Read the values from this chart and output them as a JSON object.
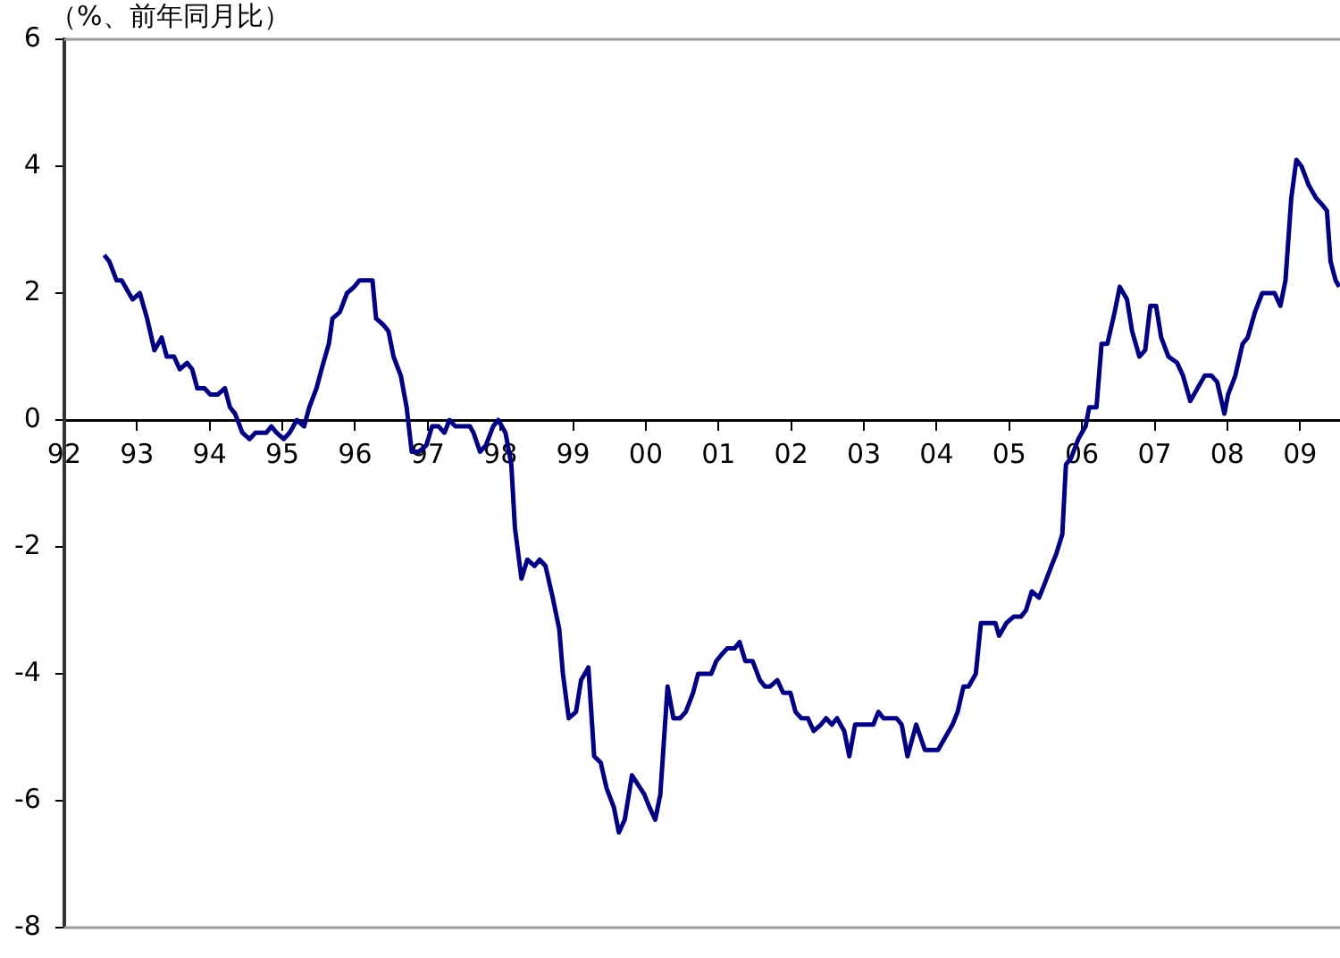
{
  "chart_data": {
    "type": "line",
    "title": "（%、前年同月比）",
    "color": "#000080",
    "grid": false,
    "legend": false,
    "marker": "none",
    "line_style": "solid",
    "xlim": [
      1992,
      2009.55
    ],
    "xticks": [
      {
        "value": 1992,
        "label": "92"
      },
      {
        "value": 1993,
        "label": "93"
      },
      {
        "value": 1994,
        "label": "94"
      },
      {
        "value": 1995,
        "label": "95"
      },
      {
        "value": 1996,
        "label": "96"
      },
      {
        "value": 1997,
        "label": "97"
      },
      {
        "value": 1998,
        "label": "98"
      },
      {
        "value": 1999,
        "label": "99"
      },
      {
        "value": 2000,
        "label": "00"
      },
      {
        "value": 2001,
        "label": "01"
      },
      {
        "value": 2002,
        "label": "02"
      },
      {
        "value": 2003,
        "label": "03"
      },
      {
        "value": 2004,
        "label": "04"
      },
      {
        "value": 2005,
        "label": "05"
      },
      {
        "value": 2006,
        "label": "06"
      },
      {
        "value": 2007,
        "label": "07"
      },
      {
        "value": 2008,
        "label": "08"
      },
      {
        "value": 2009,
        "label": "09"
      }
    ],
    "ylim": [
      -8,
      6
    ],
    "yticks": [
      -8,
      -6,
      -4,
      -2,
      0,
      2,
      4,
      6
    ],
    "x": [
      1992.55,
      1992.62,
      1992.72,
      1992.79,
      1992.89,
      1992.94,
      1993.04,
      1993.14,
      1993.24,
      1993.34,
      1993.41,
      1993.51,
      1993.59,
      1993.69,
      1993.76,
      1993.83,
      1993.93,
      1994.01,
      1994.11,
      1994.21,
      1994.28,
      1994.35,
      1994.45,
      1994.55,
      1994.63,
      1994.78,
      1994.85,
      1994.92,
      1995.02,
      1995.1,
      1995.2,
      1995.3,
      1995.37,
      1995.47,
      1995.54,
      1995.64,
      1995.69,
      1995.79,
      1995.89,
      1995.99,
      1996.06,
      1996.24,
      1996.29,
      1996.39,
      1996.46,
      1996.53,
      1996.63,
      1996.71,
      1996.78,
      1996.88,
      1996.98,
      1997.06,
      1997.15,
      1997.23,
      1997.3,
      1997.38,
      1997.58,
      1997.63,
      1997.72,
      1997.8,
      1997.9,
      1997.97,
      1998.07,
      1998.15,
      1998.2,
      1998.29,
      1998.37,
      1998.47,
      1998.54,
      1998.62,
      1998.72,
      1998.81,
      1998.86,
      1998.94,
      1999.04,
      1999.11,
      1999.21,
      1999.29,
      1999.38,
      1999.46,
      1999.56,
      1999.63,
      1999.71,
      1999.81,
      1999.98,
      2000.05,
      2000.13,
      2000.2,
      2000.3,
      2000.38,
      2000.47,
      2000.55,
      2000.65,
      2000.72,
      2000.9,
      2000.97,
      2001.04,
      2001.12,
      2001.22,
      2001.29,
      2001.37,
      2001.47,
      2001.57,
      2001.64,
      2001.71,
      2001.81,
      2001.89,
      2001.99,
      2002.06,
      2002.14,
      2002.23,
      2002.31,
      2002.41,
      2002.48,
      2002.56,
      2002.63,
      2002.73,
      2002.8,
      2002.88,
      2003.13,
      2003.2,
      2003.27,
      2003.45,
      2003.52,
      2003.6,
      2003.72,
      2003.84,
      2004.02,
      2004.22,
      2004.29,
      2004.37,
      2004.44,
      2004.54,
      2004.61,
      2004.81,
      2004.86,
      2004.96,
      2005.06,
      2005.16,
      2005.23,
      2005.31,
      2005.41,
      2005.48,
      2005.58,
      2005.65,
      2005.73,
      2005.78,
      2005.85,
      2005.95,
      2006.05,
      2006.1,
      2006.2,
      2006.27,
      2006.35,
      2006.45,
      2006.52,
      2006.62,
      2006.69,
      2006.79,
      2006.87,
      2006.94,
      2007.02,
      2007.09,
      2007.19,
      2007.31,
      2007.39,
      2007.49,
      2007.59,
      2007.69,
      2007.78,
      2007.86,
      2007.96,
      2008.01,
      2008.11,
      2008.21,
      2008.28,
      2008.38,
      2008.48,
      2008.65,
      2008.73,
      2008.8,
      2008.88,
      2008.95,
      2009.02,
      2009.12,
      2009.22,
      2009.3,
      2009.37,
      2009.42,
      2009.49,
      2009.54
    ],
    "values": [
      2.6,
      2.5,
      2.2,
      2.2,
      2.0,
      1.9,
      2.0,
      1.6,
      1.1,
      1.3,
      1.0,
      1.0,
      0.8,
      0.9,
      0.8,
      0.5,
      0.5,
      0.4,
      0.4,
      0.5,
      0.2,
      0.1,
      -0.2,
      -0.3,
      -0.2,
      -0.2,
      -0.1,
      -0.2,
      -0.3,
      -0.2,
      0.0,
      -0.1,
      0.2,
      0.5,
      0.8,
      1.2,
      1.6,
      1.7,
      2.0,
      2.1,
      2.2,
      2.2,
      1.6,
      1.5,
      1.4,
      1.0,
      0.7,
      0.2,
      -0.5,
      -0.5,
      -0.4,
      -0.1,
      -0.1,
      -0.2,
      0.0,
      -0.1,
      -0.1,
      -0.2,
      -0.5,
      -0.4,
      -0.1,
      0.0,
      -0.2,
      -0.7,
      -1.7,
      -2.5,
      -2.2,
      -2.3,
      -2.2,
      -2.3,
      -2.8,
      -3.3,
      -4.0,
      -4.7,
      -4.6,
      -4.1,
      -3.9,
      -5.3,
      -5.4,
      -5.8,
      -6.1,
      -6.5,
      -6.3,
      -5.6,
      -5.9,
      -6.1,
      -6.3,
      -5.9,
      -4.2,
      -4.7,
      -4.7,
      -4.6,
      -4.3,
      -4.0,
      -4.0,
      -3.8,
      -3.7,
      -3.6,
      -3.6,
      -3.5,
      -3.8,
      -3.8,
      -4.1,
      -4.2,
      -4.2,
      -4.1,
      -4.3,
      -4.3,
      -4.6,
      -4.7,
      -4.7,
      -4.9,
      -4.8,
      -4.7,
      -4.8,
      -4.7,
      -4.9,
      -5.3,
      -4.8,
      -4.8,
      -4.6,
      -4.7,
      -4.7,
      -4.8,
      -5.3,
      -4.8,
      -5.2,
      -5.2,
      -4.8,
      -4.6,
      -4.2,
      -4.2,
      -4.0,
      -3.2,
      -3.2,
      -3.4,
      -3.2,
      -3.1,
      -3.1,
      -3.0,
      -2.7,
      -2.8,
      -2.6,
      -2.3,
      -2.1,
      -1.8,
      -0.7,
      -0.6,
      -0.3,
      -0.1,
      0.2,
      0.2,
      1.2,
      1.2,
      1.7,
      2.1,
      1.9,
      1.4,
      1.0,
      1.1,
      1.8,
      1.8,
      1.3,
      1.0,
      0.9,
      0.7,
      0.3,
      0.5,
      0.7,
      0.7,
      0.6,
      0.1,
      0.4,
      0.7,
      1.2,
      1.3,
      1.7,
      2.0,
      2.0,
      1.8,
      2.2,
      3.5,
      4.1,
      4.0,
      3.7,
      3.5,
      3.4,
      3.3,
      2.5,
      2.2,
      2.1
    ]
  }
}
